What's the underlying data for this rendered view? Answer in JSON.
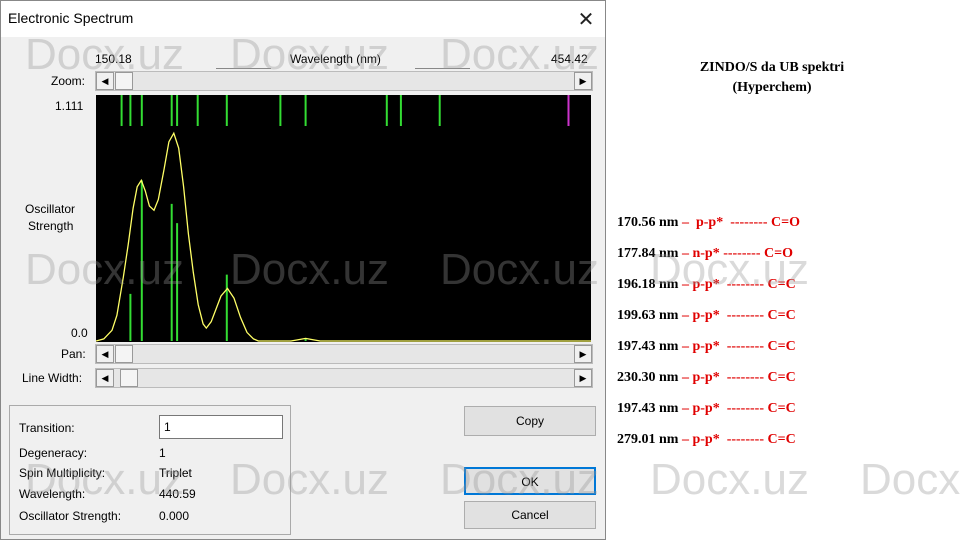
{
  "window": {
    "title": "Electronic Spectrum",
    "close_icon": "close-icon"
  },
  "spectrum": {
    "x_min_label": "150.18",
    "x_max_label": "454.42",
    "x_axis_label": "Wavelength (nm)",
    "y_max_label": "1.111",
    "y_min_label": "0.0",
    "y_axis_label_1": "Oscillator",
    "y_axis_label_2": "Strength",
    "zoom_label": "Zoom:",
    "pan_label": "Pan:",
    "line_width_label": "Line Width:",
    "colors": {
      "background": "#000000",
      "curve": "#ffff66",
      "sticks": "#33dd33",
      "selected": "#cc33cc"
    },
    "chart_data": {
      "type": "line",
      "xlim": [
        150.18,
        454.42
      ],
      "ylim": [
        0,
        1.111
      ],
      "sticks": [
        {
          "x": 165.9,
          "y": 0
        },
        {
          "x": 171.3,
          "y": 0.22
        },
        {
          "x": 178.3,
          "y": 0.75
        },
        {
          "x": 196.7,
          "y": 0.64
        },
        {
          "x": 200.0,
          "y": 0.55
        },
        {
          "x": 212.7,
          "y": 0
        },
        {
          "x": 230.6,
          "y": 0.31
        },
        {
          "x": 263.5,
          "y": 0
        },
        {
          "x": 279.0,
          "y": 0.012
        },
        {
          "x": 328.9,
          "y": 0
        },
        {
          "x": 337.6,
          "y": 0
        },
        {
          "x": 361.4,
          "y": 0
        },
        {
          "x": 440.6,
          "y": 0,
          "selected": true
        }
      ],
      "curve": [
        [
          150.18,
          0
        ],
        [
          155,
          0.01
        ],
        [
          160,
          0.05
        ],
        [
          163,
          0.12
        ],
        [
          167,
          0.3
        ],
        [
          170,
          0.45
        ],
        [
          173,
          0.62
        ],
        [
          175.5,
          0.72
        ],
        [
          178,
          0.75
        ],
        [
          180.5,
          0.7
        ],
        [
          183,
          0.63
        ],
        [
          185.8,
          0.61
        ],
        [
          188.5,
          0.66
        ],
        [
          192,
          0.8
        ],
        [
          195,
          0.93
        ],
        [
          198,
          0.97
        ],
        [
          201,
          0.9
        ],
        [
          204,
          0.72
        ],
        [
          207,
          0.5
        ],
        [
          210,
          0.32
        ],
        [
          213,
          0.17
        ],
        [
          216,
          0.08
        ],
        [
          218,
          0.06
        ],
        [
          221,
          0.09
        ],
        [
          224,
          0.15
        ],
        [
          227,
          0.21
        ],
        [
          231,
          0.245
        ],
        [
          235,
          0.2
        ],
        [
          239,
          0.11
        ],
        [
          243,
          0.04
        ],
        [
          247,
          0.01
        ],
        [
          250,
          0
        ],
        [
          270,
          0
        ],
        [
          274,
          0.005
        ],
        [
          279,
          0.012
        ],
        [
          284,
          0.005
        ],
        [
          288,
          0
        ],
        [
          454.42,
          0
        ]
      ]
    }
  },
  "details": {
    "transition_label": "Transition:",
    "transition_value": "1",
    "degeneracy_label": "Degeneracy:",
    "degeneracy_value": "1",
    "spin_label": "Spin Multiplicity:",
    "spin_value": "Triplet",
    "wavelength_label": "Wavelength:",
    "wavelength_value": "440.59",
    "osc_label": "Oscillator Strength:",
    "osc_value": "0.000"
  },
  "buttons": {
    "copy": "Copy",
    "ok": "OK",
    "cancel": "Cancel"
  },
  "notes": {
    "heading_1": "ZINDO/S da UB spektri",
    "heading_2": "(Hyperchem)",
    "rows": [
      {
        "wl": "170.56 nm",
        "sep": " – ",
        "trans": " p-p*",
        "dash": "  -------- ",
        "bond": "C=O"
      },
      {
        "wl": "177.84 nm",
        "sep": " – ",
        "trans": "n-p*",
        "dash": " -------- ",
        "bond": "C=O"
      },
      {
        "wl": "196.18 nm",
        "sep": " – ",
        "trans": "p-p*",
        "dash": "  -------- ",
        "bond": "C=C"
      },
      {
        "wl": "199.63 nm",
        "sep": " – ",
        "trans": "p-p*",
        "dash": "  -------- ",
        "bond": "C=C"
      },
      {
        "wl": "197.43 nm",
        "sep": " – ",
        "trans": "p-p*",
        "dash": "  -------- ",
        "bond": "C=C"
      },
      {
        "wl": "230.30 nm",
        "sep": " – ",
        "trans": "p-p*",
        "dash": "  -------- ",
        "bond": "C=C"
      },
      {
        "wl": "197.43 nm",
        "sep": " – ",
        "trans": "p-p*",
        "dash": "  -------- ",
        "bond": "C=C"
      },
      {
        "wl": "279.01 nm",
        "sep": " – ",
        "trans": "p-p*",
        "dash": "  -------- ",
        "bond": "C=C"
      }
    ]
  },
  "watermark": "Docx.uz"
}
